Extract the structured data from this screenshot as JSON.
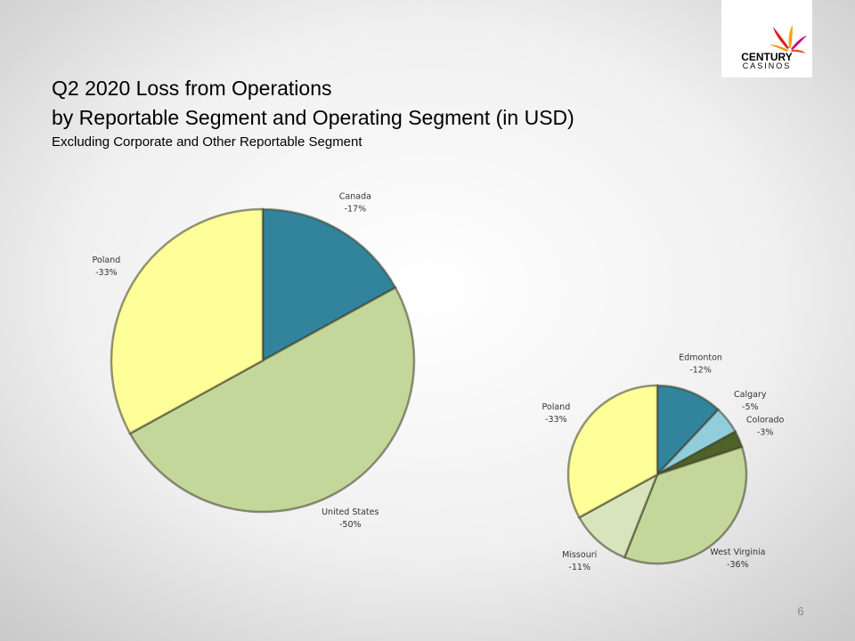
{
  "title": [
    "Q2 2020 Loss from Operations",
    "by Reportable Segment and Operating Segment (in USD)"
  ],
  "subtitle": "Excluding Corporate and Other Reportable Segment",
  "logo": {
    "name": "CENTURY",
    "tagline": "CASINOS"
  },
  "page_number": 6,
  "chart_data": [
    {
      "type": "pie",
      "categories": [
        "Canada",
        "United States",
        "Poland"
      ],
      "values": [
        -17,
        -50,
        -33
      ],
      "value_labels": [
        "-17%",
        "-50%",
        "-33%"
      ],
      "colors": [
        "#31849b",
        "#c4d79b",
        "#ffff99"
      ]
    },
    {
      "type": "pie",
      "categories": [
        "Edmonton",
        "Calgary",
        "Colorado",
        "West Virginia",
        "Missouri",
        "Poland"
      ],
      "values": [
        -12,
        -5,
        -3,
        -36,
        -11,
        -33
      ],
      "value_labels": [
        "-12%",
        "-5%",
        "-3%",
        "-36%",
        "-11%",
        "-33%"
      ],
      "colors": [
        "#31849b",
        "#92cddc",
        "#4f6228",
        "#c4d79b",
        "#d8e4bc",
        "#ffff99"
      ]
    }
  ]
}
